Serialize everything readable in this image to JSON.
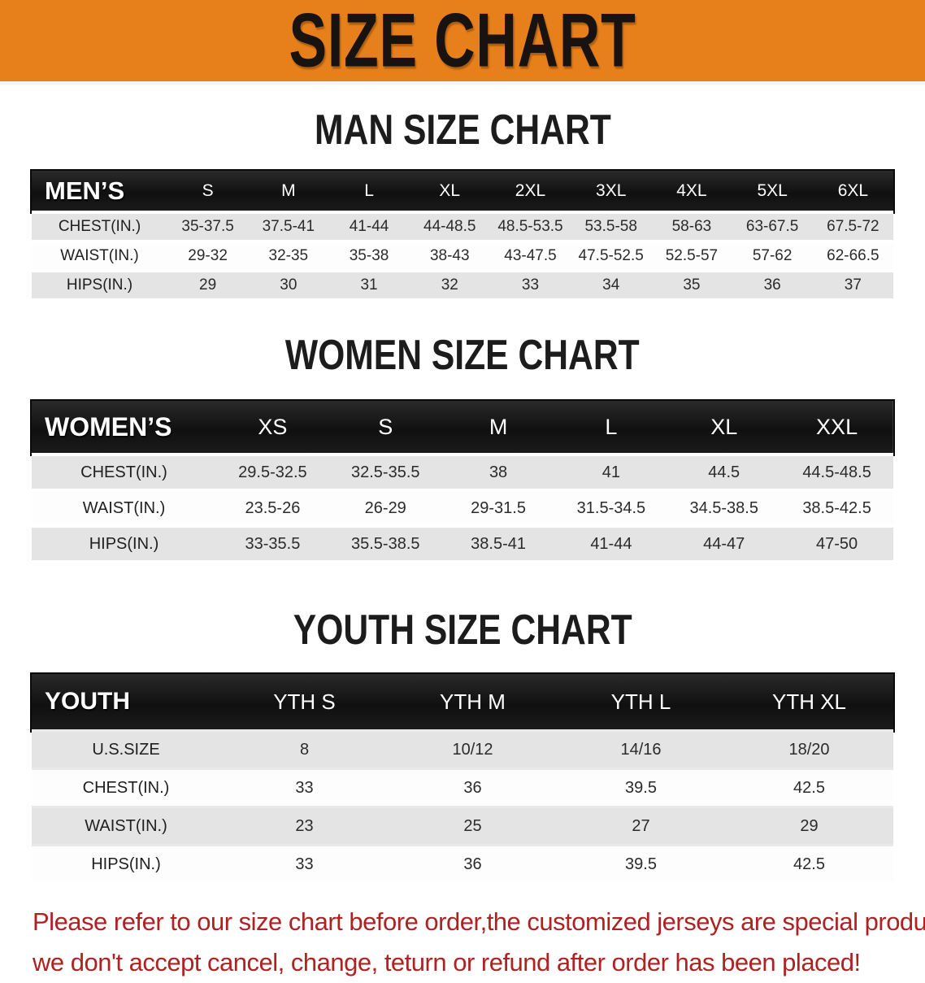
{
  "banner": {
    "title": "SIZE CHART",
    "bg_color": "#e7801a",
    "text_color": "#181310"
  },
  "sections": [
    {
      "heading": "MAN SIZE CHART",
      "table": {
        "group_label": "MEN’S",
        "columns": [
          "S",
          "M",
          "L",
          "XL",
          "2XL",
          "3XL",
          "4XL",
          "5XL",
          "6XL"
        ],
        "rows": [
          {
            "label": "CHEST(IN.)",
            "values": [
              "35-37.5",
              "37.5-41",
              "41-44",
              "44-48.5",
              "48.5-53.5",
              "53.5-58",
              "58-63",
              "63-67.5",
              "67.5-72"
            ]
          },
          {
            "label": "WAIST(IN.)",
            "values": [
              "29-32",
              "32-35",
              "35-38",
              "38-43",
              "43-47.5",
              "47.5-52.5",
              "52.5-57",
              "57-62",
              "62-66.5"
            ]
          },
          {
            "label": "HIPS(IN.)",
            "values": [
              "29",
              "30",
              "31",
              "32",
              "33",
              "34",
              "35",
              "36",
              "37"
            ]
          }
        ]
      }
    },
    {
      "heading": "WOMEN SIZE CHART",
      "table": {
        "group_label": "WOMEN’S",
        "columns": [
          "XS",
          "S",
          "M",
          "L",
          "XL",
          "XXL"
        ],
        "rows": [
          {
            "label": "CHEST(IN.)",
            "values": [
              "29.5-32.5",
              "32.5-35.5",
              "38",
              "41",
              "44.5",
              "44.5-48.5"
            ]
          },
          {
            "label": "WAIST(IN.)",
            "values": [
              "23.5-26",
              "26-29",
              "29-31.5",
              "31.5-34.5",
              "34.5-38.5",
              "38.5-42.5"
            ]
          },
          {
            "label": "HIPS(IN.)",
            "values": [
              "33-35.5",
              "35.5-38.5",
              "38.5-41",
              "41-44",
              "44-47",
              "47-50"
            ]
          }
        ]
      }
    },
    {
      "heading": "YOUTH SIZE CHART",
      "table": {
        "group_label": "YOUTH",
        "columns": [
          "YTH S",
          "YTH M",
          "YTH L",
          "YTH XL"
        ],
        "rows": [
          {
            "label": "U.S.SIZE",
            "values": [
              "8",
              "10/12",
              "14/16",
              "18/20"
            ]
          },
          {
            "label": "CHEST(IN.)",
            "values": [
              "33",
              "36",
              "39.5",
              "42.5"
            ]
          },
          {
            "label": "WAIST(IN.)",
            "values": [
              "23",
              "25",
              "27",
              "29"
            ]
          },
          {
            "label": "HIPS(IN.)",
            "values": [
              "33",
              "36",
              "39.5",
              "42.5"
            ]
          }
        ]
      }
    }
  ],
  "disclaimer": {
    "color": "#b02121",
    "lines": [
      "Please refer to our size chart before order,the customized jerseys are special products,",
      "we don't accept cancel, change, teturn or refund after order has been placed!"
    ]
  }
}
